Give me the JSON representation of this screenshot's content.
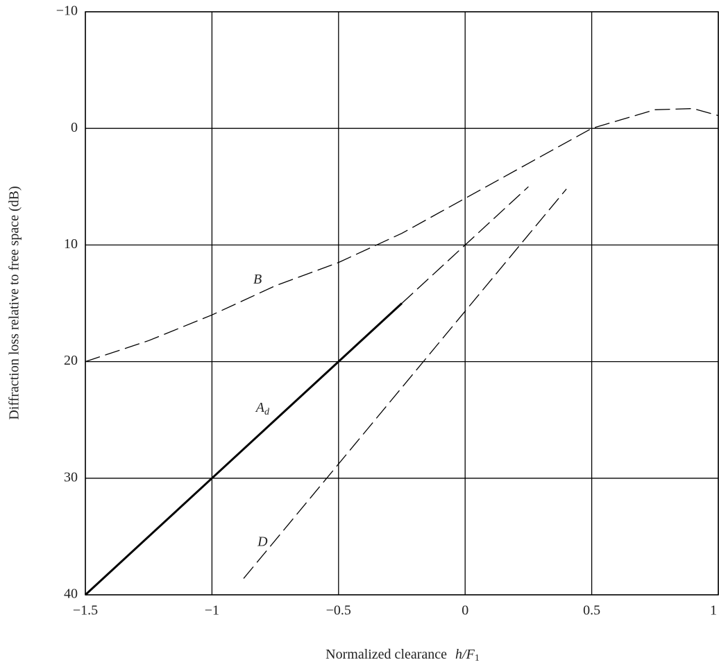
{
  "chart_data": {
    "type": "line",
    "x_label": "Normalized clearance",
    "x_label_symbol": "h/F",
    "x_label_sub": "1",
    "y_label": "Diffraction loss relative to free space (dB)",
    "xlim": [
      -1.5,
      1
    ],
    "xticks": [
      {
        "value": -1.5,
        "label": "−1.5"
      },
      {
        "value": -1,
        "label": "−1"
      },
      {
        "value": -0.5,
        "label": "−0.5"
      },
      0,
      0.5,
      1
    ],
    "ylim": [
      -10,
      40
    ],
    "y_inverted": true,
    "yticks": [
      {
        "value": -10,
        "label": "−10"
      },
      0,
      10,
      20,
      30,
      40
    ],
    "grid": true,
    "series": [
      {
        "name": "B",
        "color": "#000000",
        "line_style": "dashed",
        "x": [
          -1.5,
          -1.25,
          -1,
          -0.75,
          -0.5,
          -0.25,
          0,
          0.25,
          0.5,
          0.75,
          0.9,
          1
        ],
        "values": [
          20,
          18.2,
          16,
          13.5,
          11.5,
          9,
          6,
          3,
          0,
          -1.6,
          -1.7,
          -1.1
        ]
      },
      {
        "name": "A",
        "name_sub": "d",
        "color": "#000000",
        "line_style": "solid",
        "x": [
          -1.5,
          -1,
          -0.5,
          -0.25
        ],
        "values": [
          40,
          30,
          20,
          15
        ]
      },
      {
        "color": "#000000",
        "line_style": "dashed",
        "x": [
          -0.25,
          0.25
        ],
        "values": [
          15,
          5
        ]
      },
      {
        "name": "D",
        "color": "#000000",
        "line_style": "dashed",
        "x": [
          -0.875,
          0.4
        ],
        "values": [
          38.6,
          5.2
        ]
      }
    ],
    "annotations": [
      {
        "series": 0,
        "x": -0.82,
        "y": 13
      },
      {
        "series": 1,
        "x": -0.8,
        "y": 24
      },
      {
        "series": 3,
        "x": -0.8,
        "y": 35.5
      }
    ]
  }
}
